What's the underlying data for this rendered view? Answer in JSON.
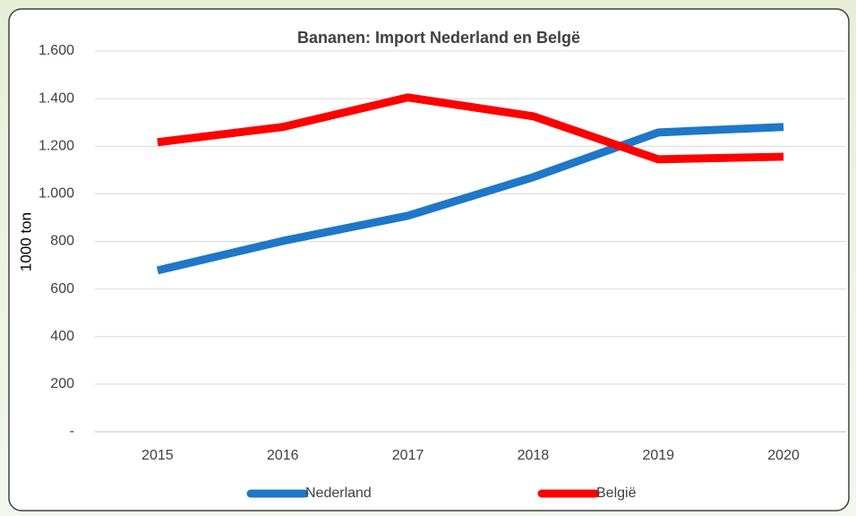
{
  "chart_data": {
    "type": "line",
    "title": "Bananen: Import Nederland en Belgë",
    "y_label": "1000 ton",
    "categories": [
      "2015",
      "2016",
      "2017",
      "2018",
      "2019",
      "2020"
    ],
    "series": [
      {
        "name": "Nederland",
        "color": "#1f77c8",
        "values": [
          678,
          802,
          908,
          1070,
          1258,
          1281
        ]
      },
      {
        "name": "België",
        "color": "#ff0000",
        "values": [
          1217,
          1281,
          1405,
          1326,
          1145,
          1156
        ]
      }
    ],
    "ylim": [
      0,
      1600
    ],
    "yticks": [
      {
        "value": 0,
        "label": "-"
      },
      200,
      400,
      600,
      800,
      {
        "value": 1000,
        "label": "1.000"
      },
      {
        "value": 1200,
        "label": "1.200"
      },
      {
        "value": 1400,
        "label": "1.400"
      },
      {
        "value": 1600,
        "label": "1.600"
      }
    ],
    "grid": true,
    "legend": "bottom"
  }
}
